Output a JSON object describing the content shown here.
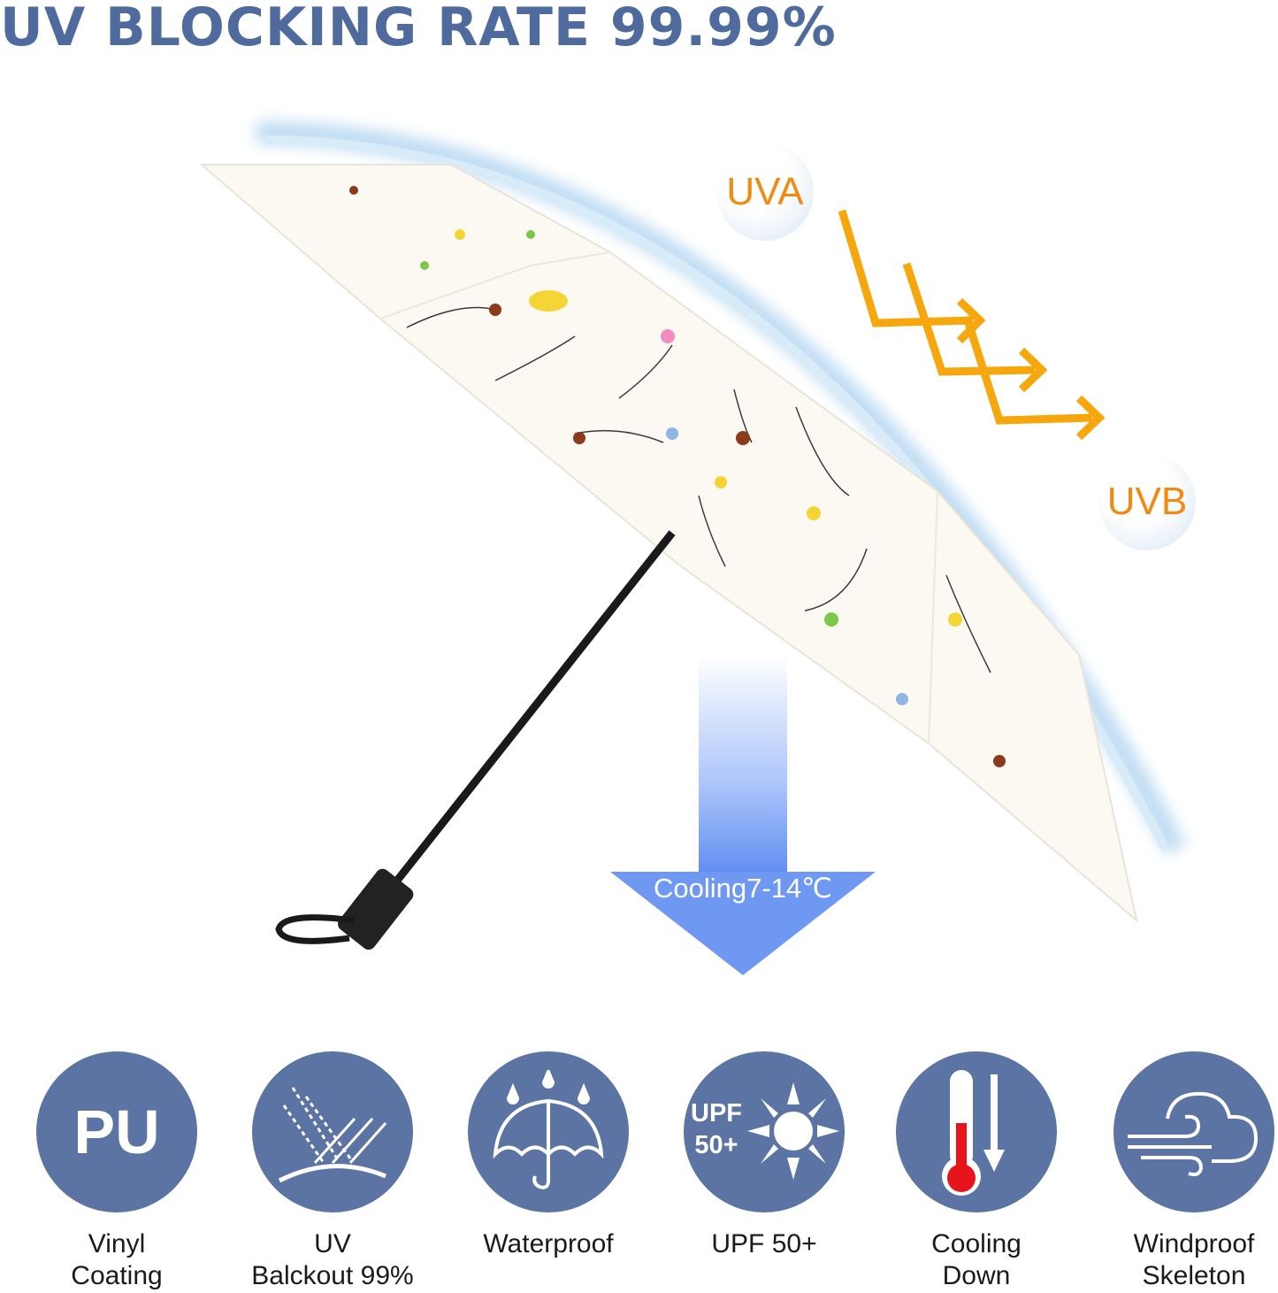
{
  "title": "UV BLOCKING RATE 99.99%",
  "badges": {
    "uva": "UVA",
    "uvb": "UVB"
  },
  "cooling_arrow": "Cooling7-14℃",
  "colors": {
    "title": "#4f6a9c",
    "feature_circle": "#5b74a3",
    "uv_text": "#f08a10",
    "arrow": "#f5a70d",
    "cooling_arrow": "#6b96f0"
  },
  "features": [
    {
      "icon": "pu-text-icon",
      "badge": "PU",
      "label_lines": [
        "Vinyl",
        "Coating"
      ]
    },
    {
      "icon": "uv-rays-blocked-icon",
      "label_lines": [
        "UV",
        "Balckout 99%"
      ]
    },
    {
      "icon": "umbrella-rain-icon",
      "label_lines": [
        "Waterproof",
        ""
      ]
    },
    {
      "icon": "sun-icon",
      "badge_lines": [
        "UPF",
        "50+"
      ],
      "label_lines": [
        "UPF 50+",
        ""
      ]
    },
    {
      "icon": "thermometer-down-icon",
      "label_lines": [
        "Cooling",
        "Down"
      ]
    },
    {
      "icon": "wind-cloud-icon",
      "label_lines": [
        "Windproof",
        "Skeleton"
      ]
    }
  ]
}
